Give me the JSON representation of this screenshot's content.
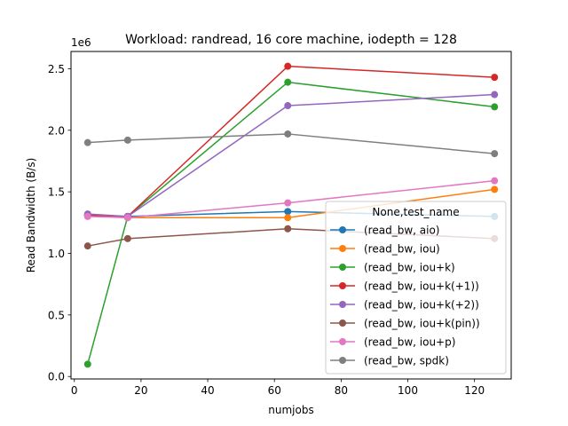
{
  "chart_data": {
    "type": "line",
    "title": "Workload: randread, 16 core machine, iodepth = 128",
    "xlabel": "numjobs",
    "ylabel": "Read Bandwidth (B/s)",
    "y_offset_label": "1e6",
    "x": [
      4,
      16,
      64,
      126
    ],
    "xlim": [
      -1,
      131
    ],
    "ylim": [
      -0.02,
      2.64
    ],
    "x_ticks": [
      0,
      20,
      40,
      60,
      80,
      100,
      120
    ],
    "x_tick_labels": [
      "0",
      "20",
      "40",
      "60",
      "80",
      "100",
      "120"
    ],
    "y_ticks": [
      0.0,
      0.5,
      1.0,
      1.5,
      2.0,
      2.5
    ],
    "y_tick_labels": [
      "0.0",
      "0.5",
      "1.0",
      "1.5",
      "2.0",
      "2.5"
    ],
    "grid": false,
    "legend_title": "None,test_name",
    "legend_position": "lower-right",
    "series": [
      {
        "name": "(read_bw, aio)",
        "color": "#1f77b4",
        "values": [
          1.31,
          1.3,
          1.34,
          1.3
        ]
      },
      {
        "name": "(read_bw, iou)",
        "color": "#ff7f0e",
        "values": [
          1.31,
          1.29,
          1.29,
          1.52
        ]
      },
      {
        "name": "(read_bw, iou+k)",
        "color": "#2ca02c",
        "values": [
          0.1,
          1.3,
          2.39,
          2.19
        ]
      },
      {
        "name": "(read_bw, iou+k(+1))",
        "color": "#d62728",
        "values": [
          1.31,
          1.3,
          2.52,
          2.43
        ]
      },
      {
        "name": "(read_bw, iou+k(+2))",
        "color": "#9467bd",
        "values": [
          1.32,
          1.3,
          2.2,
          2.29
        ]
      },
      {
        "name": "(read_bw, iou+k(pin))",
        "color": "#8c564b",
        "values": [
          1.06,
          1.12,
          1.2,
          1.12
        ]
      },
      {
        "name": "(read_bw, iou+p)",
        "color": "#e377c2",
        "values": [
          1.3,
          1.29,
          1.41,
          1.59
        ]
      },
      {
        "name": "(read_bw, spdk)",
        "color": "#7f7f7f",
        "values": [
          1.9,
          1.92,
          1.97,
          1.81
        ]
      }
    ]
  }
}
